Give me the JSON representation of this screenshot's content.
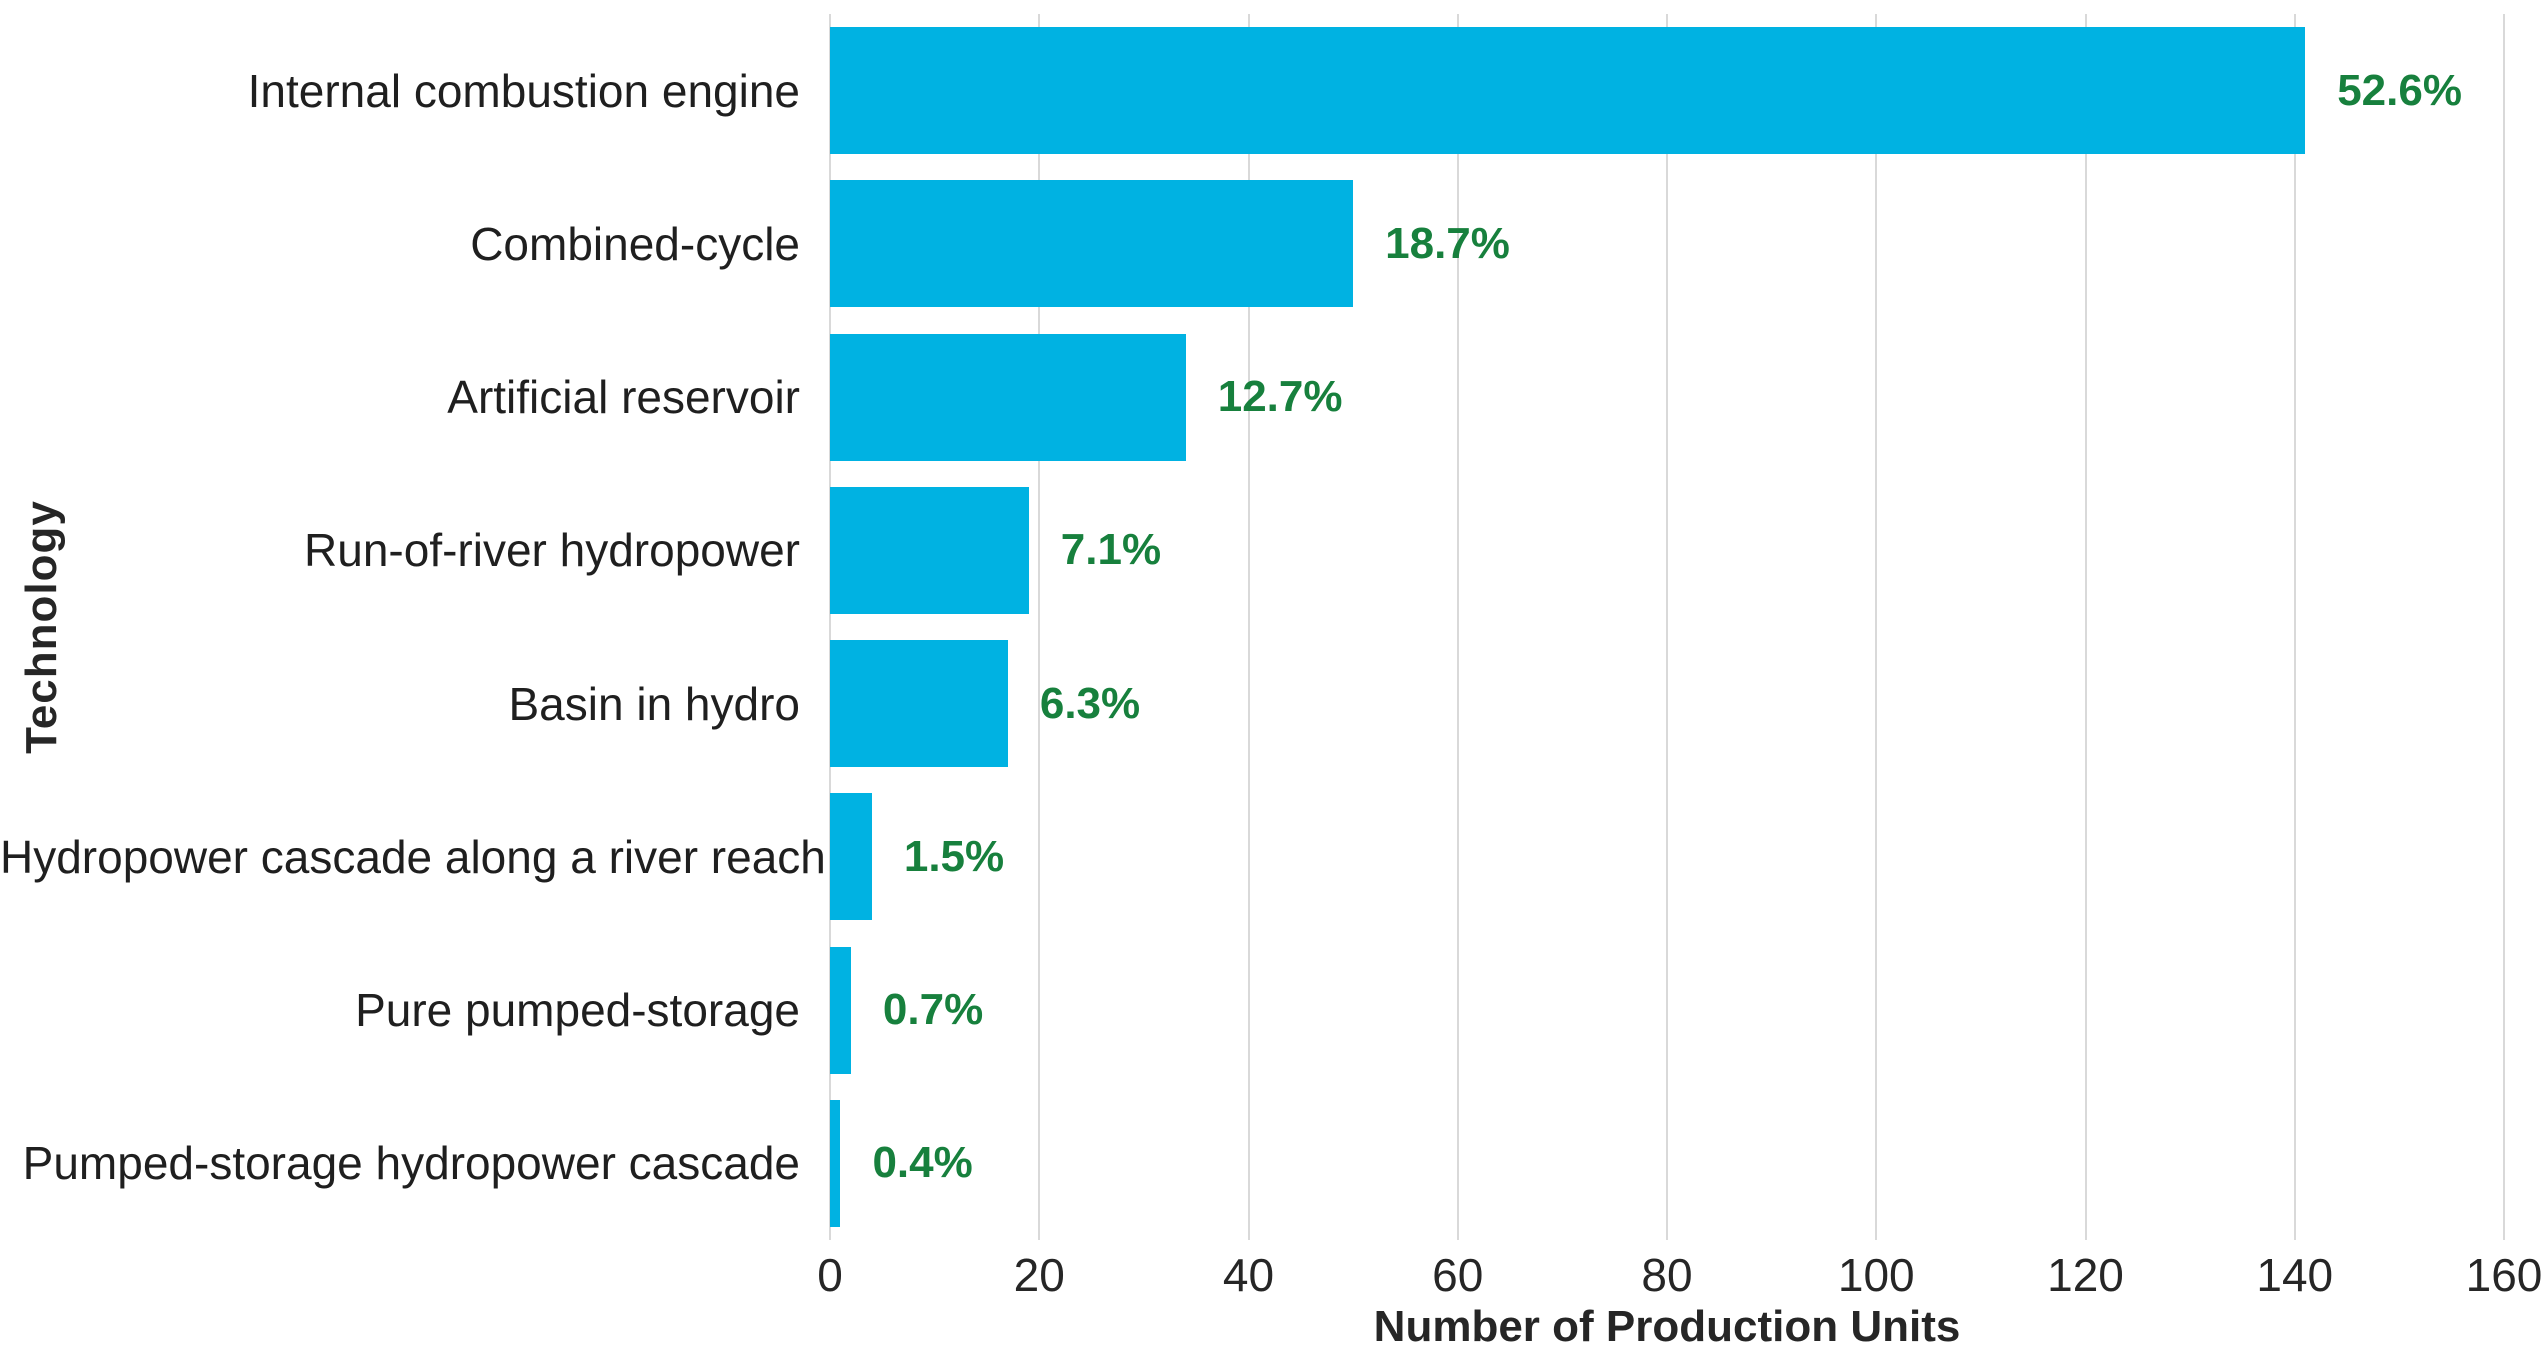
{
  "chart_data": {
    "type": "bar",
    "orientation": "horizontal",
    "categories": [
      "Internal combustion engine",
      "Combined-cycle",
      "Artificial reservoir",
      "Run-of-river hydropower",
      "Basin in hydro",
      "Hydropower cascade along a river reach",
      "Pure pumped-storage",
      "Pumped-storage hydropower cascade"
    ],
    "values": [
      141,
      50,
      34,
      19,
      17,
      4,
      2,
      1
    ],
    "percent_labels": [
      "52.6%",
      "18.7%",
      "12.7%",
      "7.1%",
      "6.3%",
      "1.5%",
      "0.7%",
      "0.4%"
    ],
    "xlabel": "Number of Production Units",
    "ylabel": "Technology",
    "xlim": [
      0,
      160
    ],
    "xticks": [
      0,
      20,
      40,
      60,
      80,
      100,
      120,
      140,
      160
    ],
    "grid": true,
    "legend": "none",
    "bar_color": "#00b2e2",
    "percent_label_color": "#17803d",
    "gridline_color": "#d9d9d9"
  }
}
